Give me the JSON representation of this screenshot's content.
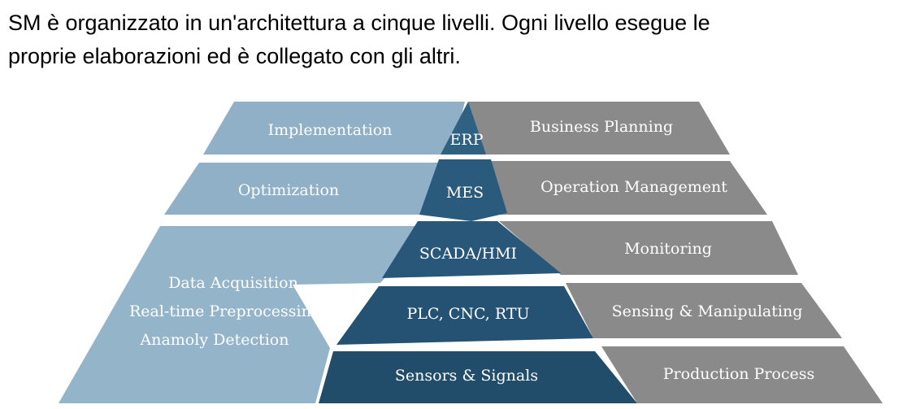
{
  "intro": {
    "line1": "SM è organizzato in un'architettura a cinque livelli. Ogni livello esegue le",
    "line2": "proprie elaborazioni ed è collegato con gli altri."
  },
  "diagram": {
    "colors": {
      "left_band": "#86a9c1",
      "left_light": "#9dbbcf",
      "right_band": "#8b8b8b",
      "center_top": "#2e5f80",
      "center_mid": "#28597a",
      "center_low": "#214d6b",
      "shadow": "#1c4560"
    },
    "left_labels": {
      "level1": "Implementation",
      "level2": "Optimization",
      "base_line1": "Data Acquisition",
      "base_line2": "Real-time Preprocessing",
      "base_line3": "Anamoly Detection"
    },
    "center_labels": {
      "level1": "ERP",
      "level2": "MES",
      "level3": "SCADA/HMI",
      "level4": "PLC, CNC, RTU",
      "level5": "Sensors & Signals"
    },
    "right_labels": {
      "level1": "Business Planning",
      "level2": "Operation Management",
      "level3": "Monitoring",
      "level4": "Sensing & Manipulating",
      "level5": "Production Process"
    }
  }
}
